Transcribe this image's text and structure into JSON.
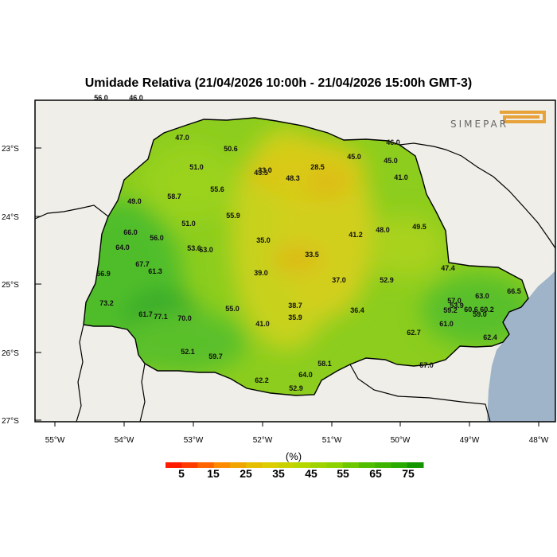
{
  "title": "Umidade Relativa (21/04/2026 10:00h - 21/04/2026 15:00h GMT-3)",
  "logo_text": "SIMEPAR",
  "colors": {
    "ocean": "#9fb4c9",
    "land_outside": "#efeee8",
    "border": "#000000"
  },
  "lat_ticks": [
    "23°S",
    "24°S",
    "25°S",
    "26°S",
    "27°S"
  ],
  "lon_ticks": [
    "55°W",
    "54°W",
    "53°W",
    "52°W",
    "51°W",
    "50°W",
    "49°W",
    "48°W"
  ],
  "colorbar": {
    "unit": "(%)",
    "labels": [
      "5",
      "15",
      "25",
      "35",
      "45",
      "55",
      "65",
      "75"
    ],
    "colors": [
      "#ff1a00",
      "#ff3c00",
      "#ff6400",
      "#ff8c00",
      "#f0a500",
      "#e6be00",
      "#dccd00",
      "#c8d200",
      "#b4d700",
      "#a0d200",
      "#8cd200",
      "#6ec800",
      "#50be00",
      "#3cb400",
      "#28aa00",
      "#149600"
    ]
  },
  "edge_values": [
    {
      "text": "56.0"
    },
    {
      "text": "46.0"
    }
  ],
  "station_values": [
    {
      "text": "47.0"
    },
    {
      "text": "50.6"
    },
    {
      "text": "45.0"
    },
    {
      "text": "46.0"
    },
    {
      "text": "45.0"
    },
    {
      "text": "51.0"
    },
    {
      "text": "43.5"
    },
    {
      "text": "33.0"
    },
    {
      "text": "28.5"
    },
    {
      "text": "48.3"
    },
    {
      "text": "41.0"
    },
    {
      "text": "55.6"
    },
    {
      "text": "58.7"
    },
    {
      "text": "49.0"
    },
    {
      "text": "55.9"
    },
    {
      "text": "51.0"
    },
    {
      "text": "66.0"
    },
    {
      "text": "56.0"
    },
    {
      "text": "35.0"
    },
    {
      "text": "41.2"
    },
    {
      "text": "48.0"
    },
    {
      "text": "49.5"
    },
    {
      "text": "64.0"
    },
    {
      "text": "53.6"
    },
    {
      "text": "63.0"
    },
    {
      "text": "33.5"
    },
    {
      "text": "67.7"
    },
    {
      "text": "61.3"
    },
    {
      "text": "47.4"
    },
    {
      "text": "56.9"
    },
    {
      "text": "39.0"
    },
    {
      "text": "37.0"
    },
    {
      "text": "52.9"
    },
    {
      "text": "63.0"
    },
    {
      "text": "66.5"
    },
    {
      "text": "73.2"
    },
    {
      "text": "38.7"
    },
    {
      "text": "57.0"
    },
    {
      "text": "55.0"
    },
    {
      "text": "36.4"
    },
    {
      "text": "53.9"
    },
    {
      "text": "59.2"
    },
    {
      "text": "60.6"
    },
    {
      "text": "60.2"
    },
    {
      "text": "61.7"
    },
    {
      "text": "77.1"
    },
    {
      "text": "70.0"
    },
    {
      "text": "35.9"
    },
    {
      "text": "59.0"
    },
    {
      "text": "41.0"
    },
    {
      "text": "61.0"
    },
    {
      "text": "62.7"
    },
    {
      "text": "62.4"
    },
    {
      "text": "52.1"
    },
    {
      "text": "59.7"
    },
    {
      "text": "58.1"
    },
    {
      "text": "64.0"
    },
    {
      "text": "57.0"
    },
    {
      "text": "62.2"
    },
    {
      "text": "52.9"
    }
  ]
}
